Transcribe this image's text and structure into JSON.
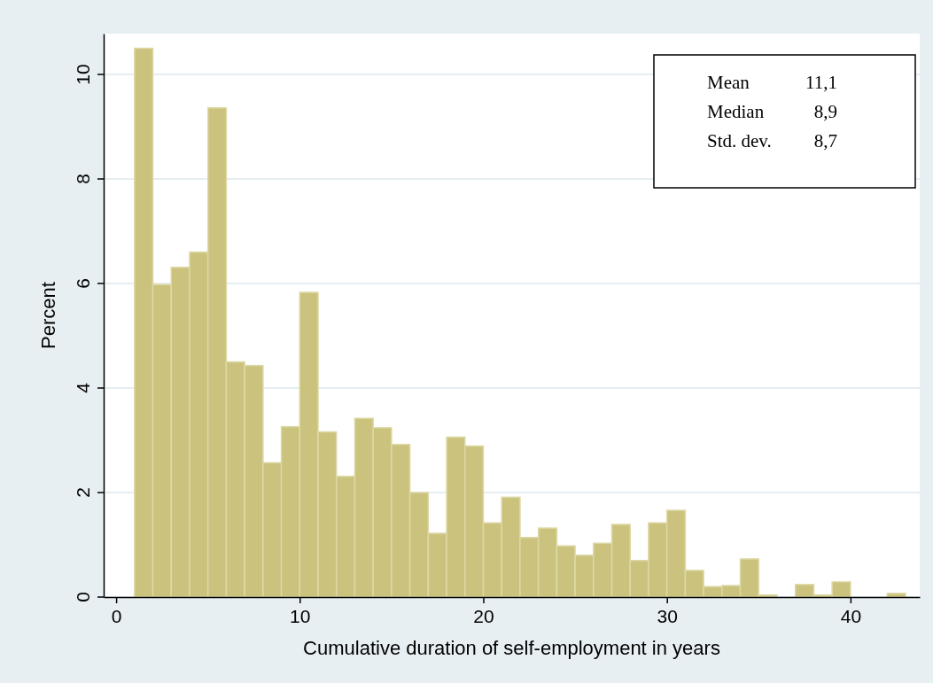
{
  "chart_data": {
    "type": "histogram",
    "xlabel": "Cumulative duration of self-employment in years",
    "ylabel": "Percent",
    "bins": [
      1,
      2,
      3,
      4,
      5,
      6,
      7,
      8,
      9,
      10,
      11,
      12,
      13,
      14,
      15,
      16,
      17,
      18,
      19,
      20,
      21,
      22,
      23,
      24,
      25,
      26,
      27,
      28,
      29,
      30,
      31,
      32,
      33,
      34,
      35,
      36,
      37,
      38,
      39,
      40,
      41,
      42,
      43
    ],
    "values": [
      10.5,
      5.98,
      6.31,
      6.6,
      9.36,
      4.5,
      4.43,
      2.57,
      3.26,
      5.83,
      3.16,
      2.31,
      3.42,
      3.24,
      2.92,
      2.0,
      1.22,
      3.06,
      2.89,
      1.42,
      1.91,
      1.14,
      1.32,
      0.98,
      0.8,
      1.03,
      1.39,
      0.7,
      1.42,
      1.66,
      0.51,
      0.2,
      0.22,
      0.73,
      0.04,
      0,
      0.24,
      0.04,
      0.29,
      0,
      0,
      0.07
    ],
    "color": "#cbc37d",
    "xlim": [
      -0.68,
      43.77
    ],
    "ylim": [
      0,
      10.78
    ],
    "xticks": [
      0,
      10,
      20,
      30,
      40
    ],
    "yticks": [
      0,
      2,
      4,
      6,
      8,
      10
    ],
    "grid": "y",
    "annotations": [
      "Mean 11,1",
      "Median 8,9",
      "Std. dev. 8,7"
    ]
  }
}
